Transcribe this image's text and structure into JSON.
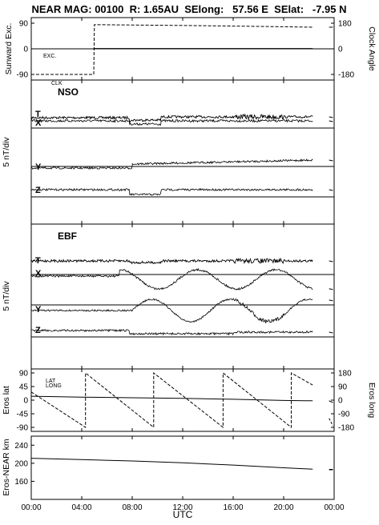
{
  "header": {
    "title": "NEAR MAG: 00100  R: 1.65AU  SElong:   57.56 E  SElat:   -7.95 N"
  },
  "x_axis": {
    "label": "UTC",
    "ticks": [
      "00:00",
      "04:00",
      "08:00",
      "12:00",
      "16:00",
      "20:00",
      "00:00"
    ],
    "tick_hours": [
      0,
      4,
      8,
      12,
      16,
      20,
      24
    ]
  },
  "panels": {
    "top": {
      "left_label": "Sunward Exc.",
      "right_label": "Clock Angle",
      "left_ticks": [
        "90",
        "0",
        "-90"
      ],
      "right_ticks": [
        "180",
        "0",
        "-180"
      ],
      "excursion_tag": "EXC.",
      "clock_tag": "CLK"
    },
    "nso": {
      "tag": "NSO",
      "ylabel": "5 nT/div",
      "trace_letters": [
        "T",
        "X",
        "Y",
        "Z"
      ]
    },
    "ebf": {
      "tag": "EBF",
      "ylabel": "5 nT/div",
      "trace_letters": [
        "T",
        "X",
        "Y",
        "Z"
      ]
    },
    "eros_angles": {
      "left_label": "Eros lat",
      "right_label": "Eros long",
      "left_ticks": [
        "90",
        "45",
        "0",
        "-45",
        "-90"
      ],
      "right_ticks": [
        "180",
        "90",
        "0",
        "-90",
        "-180"
      ],
      "lat_tag": "LAT",
      "long_tag": "LONG"
    },
    "eros_distance": {
      "left_label": "Eros-NEAR km",
      "left_ticks": [
        "240",
        "200",
        "160"
      ]
    }
  },
  "chart_data": {
    "type": "line",
    "x_unit": "hours UTC",
    "xlim": [
      0,
      24
    ],
    "sunward_excursion": {
      "name": "EXC.",
      "ylim": [
        -90,
        90
      ],
      "x": [
        0,
        4.9,
        5.0,
        22.3
      ],
      "values": [
        0,
        0,
        1,
        1
      ]
    },
    "clock_angle": {
      "name": "CLK",
      "ylim": [
        -180,
        180
      ],
      "x": [
        0,
        4.95,
        5.0,
        7,
        12,
        16,
        20,
        22.3
      ],
      "values": [
        -180,
        -180,
        170,
        168,
        164,
        160,
        155,
        152
      ]
    },
    "eros_lat": {
      "name": "LAT",
      "ylim": [
        -90,
        90
      ],
      "x": [
        0,
        4,
        8,
        12,
        16,
        20,
        22.3
      ],
      "values": [
        13,
        10,
        8,
        6,
        3,
        -1,
        -2
      ]
    },
    "eros_long": {
      "name": "LONG",
      "ylim": [
        -180,
        180
      ],
      "x": [
        0,
        4.3,
        4.3,
        9.7,
        9.7,
        15.2,
        15.2,
        20.6,
        20.6,
        22.3
      ],
      "values": [
        54,
        -180,
        180,
        -180,
        180,
        -180,
        180,
        -180,
        180,
        100
      ]
    },
    "eros_near_km": {
      "ylim": [
        120,
        260
      ],
      "x": [
        0,
        4,
        8,
        12,
        16,
        20,
        22.3
      ],
      "values": [
        211,
        208,
        205,
        201,
        196,
        190,
        187
      ]
    }
  }
}
